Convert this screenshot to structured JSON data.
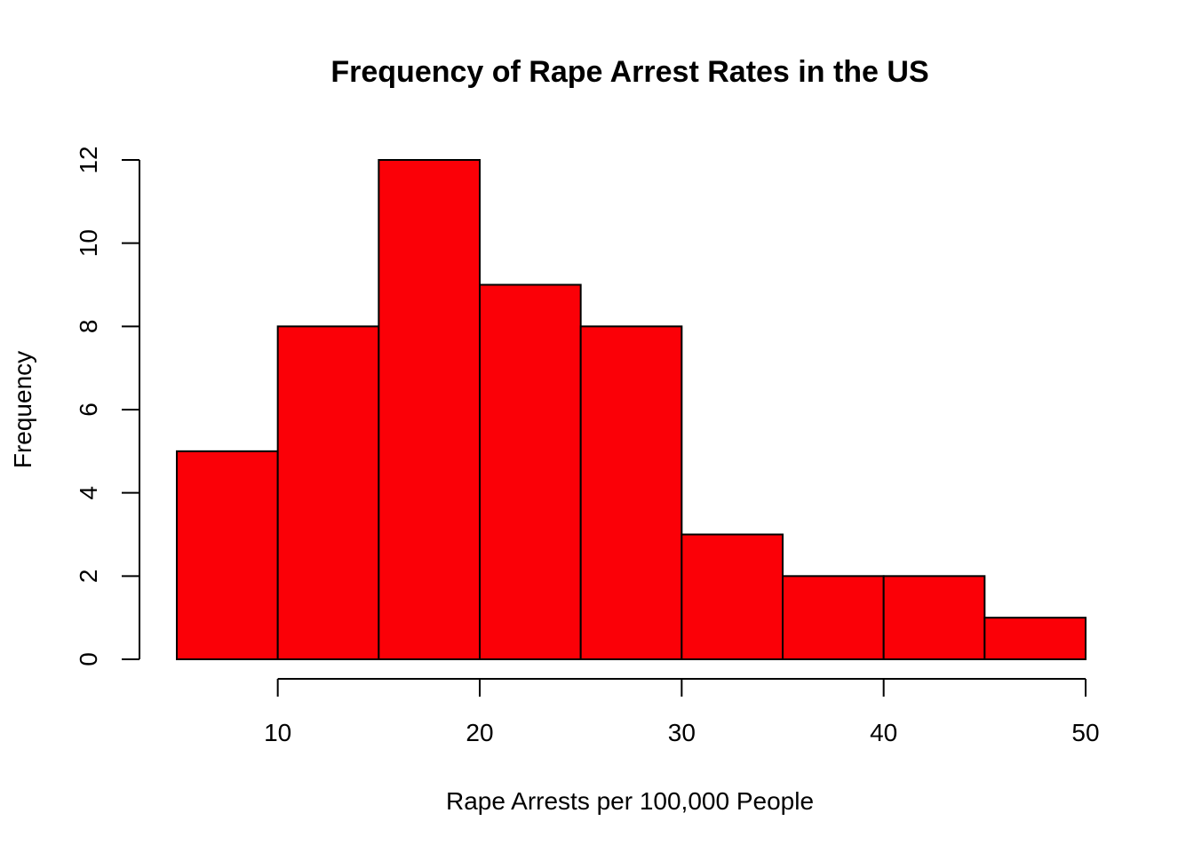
{
  "chart_data": {
    "type": "bar",
    "title": "Frequency of Rape Arrest Rates in the US",
    "xlabel": "Rape Arrests per 100,000 People",
    "ylabel": "Frequency",
    "bins": [
      {
        "start": 5,
        "end": 10,
        "count": 5
      },
      {
        "start": 10,
        "end": 15,
        "count": 8
      },
      {
        "start": 15,
        "end": 20,
        "count": 12
      },
      {
        "start": 20,
        "end": 25,
        "count": 9
      },
      {
        "start": 25,
        "end": 30,
        "count": 8
      },
      {
        "start": 30,
        "end": 35,
        "count": 3
      },
      {
        "start": 35,
        "end": 40,
        "count": 2
      },
      {
        "start": 40,
        "end": 45,
        "count": 2
      },
      {
        "start": 45,
        "end": 50,
        "count": 1
      }
    ],
    "xlim": [
      5,
      50
    ],
    "ylim": [
      0,
      12
    ],
    "x_ticks": [
      10,
      20,
      30,
      40,
      50
    ],
    "y_ticks": [
      0,
      2,
      4,
      6,
      8,
      10,
      12
    ],
    "grid": false,
    "legend": "none",
    "bar_color": "#fb0007",
    "edge_color": "#000000"
  }
}
